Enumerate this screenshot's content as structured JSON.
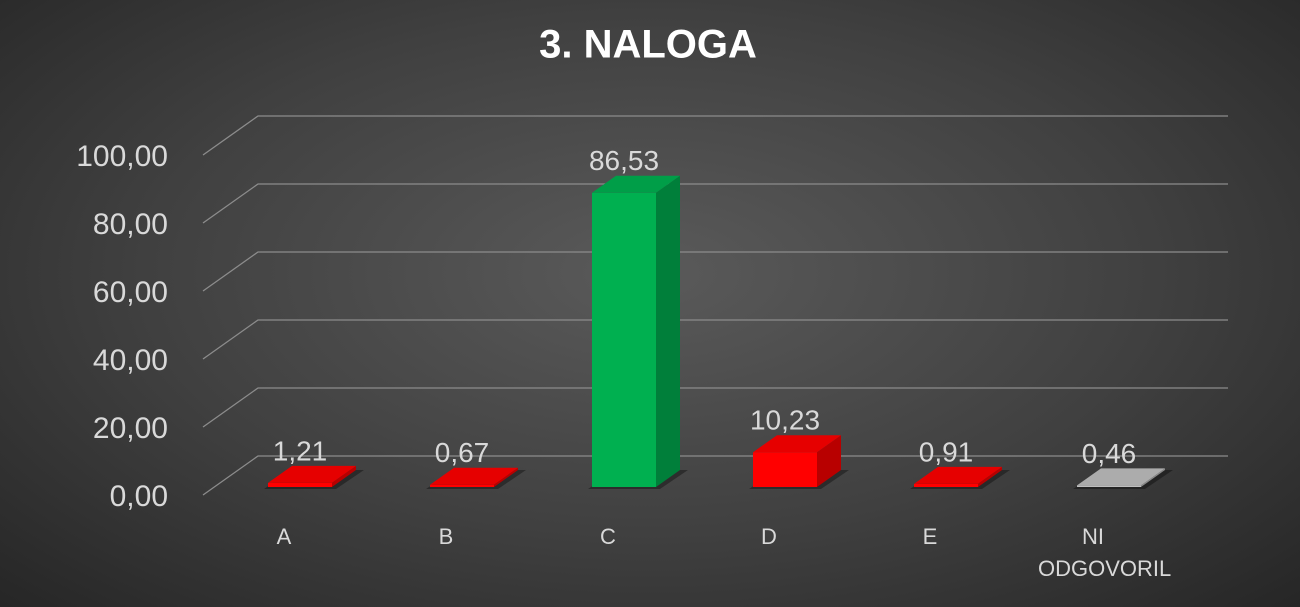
{
  "chart_data": {
    "type": "bar3d",
    "title": "3. NALOGA",
    "categories": [
      "A",
      "B",
      "C",
      "D",
      "E",
      "NI ODGOVORIL"
    ],
    "values": [
      1.21,
      0.67,
      86.53,
      10.23,
      0.91,
      0.46
    ],
    "value_labels": [
      "1,21",
      "0,67",
      "86,53",
      "10,23",
      "0,91",
      "0,46"
    ],
    "colors": [
      "#ff0000",
      "#ff0000",
      "#00b050",
      "#ff0000",
      "#ff0000",
      "#bfbfbf"
    ],
    "ylim": [
      0,
      100
    ],
    "yticks": [
      {
        "value": 0,
        "label": "0,00"
      },
      {
        "value": 20,
        "label": "20,00"
      },
      {
        "value": 40,
        "label": "40,00"
      },
      {
        "value": 60,
        "label": "60,00"
      },
      {
        "value": 80,
        "label": "80,00"
      },
      {
        "value": 100,
        "label": "100,00"
      }
    ],
    "grid": true
  }
}
